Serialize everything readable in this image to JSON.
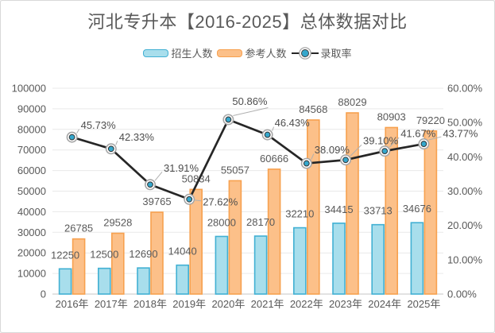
{
  "title": "河北专升本【2016-2025】总体数据对比",
  "legend": {
    "items": [
      {
        "label": "招生人数",
        "type": "bar",
        "fill": "#a8deec",
        "border": "#41b0d3"
      },
      {
        "label": "参考人数",
        "type": "bar",
        "fill": "#fcc089",
        "border": "#f7a14f"
      },
      {
        "label": "录取率",
        "type": "line",
        "color": "#262626",
        "marker": "#35a7cc"
      }
    ]
  },
  "chart_data": {
    "type": "combo-bar-line",
    "categories": [
      "2016年",
      "2017年",
      "2018年",
      "2019年",
      "2020年",
      "2021年",
      "2022年",
      "2023年",
      "2024年",
      "2025年"
    ],
    "series": [
      {
        "name": "招生人数",
        "type": "bar",
        "axis": "left",
        "values": [
          12250,
          12500,
          12690,
          14040,
          28000,
          28170,
          32210,
          34415,
          33713,
          34676
        ],
        "labels": [
          "12250",
          "12500",
          "12690",
          "14040",
          "28000",
          "28170",
          "32210",
          "34415",
          "33713",
          "34676"
        ],
        "fill": "#a8deec",
        "border": "#41b0d3"
      },
      {
        "name": "参考人数",
        "type": "bar",
        "axis": "left",
        "values": [
          26785,
          29528,
          39765,
          50834,
          55057,
          60666,
          84568,
          88029,
          80903,
          79220
        ],
        "labels": [
          "26785",
          "29528",
          "39765",
          "50834",
          "55057",
          "60666",
          "84568",
          "88029",
          "80903",
          "79220"
        ],
        "fill": "#fcc089",
        "border": "#f7a14f"
      },
      {
        "name": "录取率",
        "type": "line",
        "axis": "right",
        "values": [
          45.73,
          42.33,
          31.91,
          27.62,
          50.86,
          46.43,
          38.09,
          39.1,
          41.67,
          43.77
        ],
        "labels": [
          "45.73%",
          "42.33%",
          "31.91%",
          "27.62%",
          "50.86%",
          "46.43%",
          "38.09%",
          "39.10%",
          "41.67%",
          "43.77%"
        ],
        "color": "#262626",
        "marker_fill": "#35a7cc",
        "marker_ring": "#a6a6a6"
      }
    ],
    "left_axis": {
      "min": 0,
      "max": 100000,
      "step": 10000,
      "ticks": [
        "0",
        "10000",
        "20000",
        "30000",
        "40000",
        "50000",
        "60000",
        "70000",
        "80000",
        "90000",
        "100000"
      ]
    },
    "right_axis": {
      "min": 0,
      "max": 60,
      "step": 10,
      "ticks": [
        "0.00%",
        "10.00%",
        "20.00%",
        "30.00%",
        "40.00%",
        "50.00%",
        "60.00%"
      ]
    },
    "grid": true,
    "legend_position": "top",
    "colors": {
      "grid": "#e9e9e9",
      "axis_line": "#c6c6c6",
      "tick_text": "#595959",
      "bar_label_text": "#595959",
      "pct_label_text": "#4d4d4d",
      "leader": "#b0b0b0"
    }
  }
}
